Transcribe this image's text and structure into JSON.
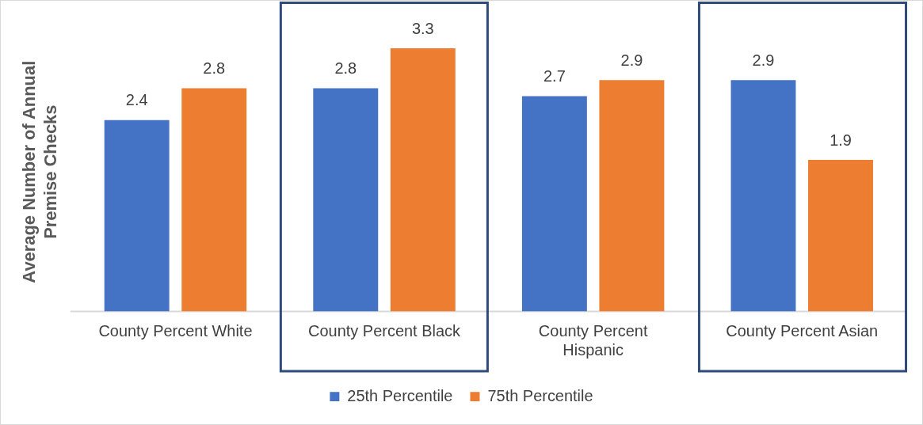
{
  "chart_data": {
    "type": "bar",
    "ylabel": "Average Number of Annual Premise Checks",
    "categories": [
      "County Percent White",
      "County Percent Black",
      "County Percent Hispanic",
      "County Percent Asian"
    ],
    "series": [
      {
        "name": "25th Percentile",
        "color": "#4472c4",
        "values": [
          2.4,
          2.8,
          2.7,
          2.9
        ]
      },
      {
        "name": "75th Percentile",
        "color": "#ed7d31",
        "values": [
          2.8,
          3.3,
          2.9,
          1.9
        ]
      }
    ],
    "tick_labels": "x",
    "data_labels": true,
    "legend": "bottom",
    "grid": false
  }
}
